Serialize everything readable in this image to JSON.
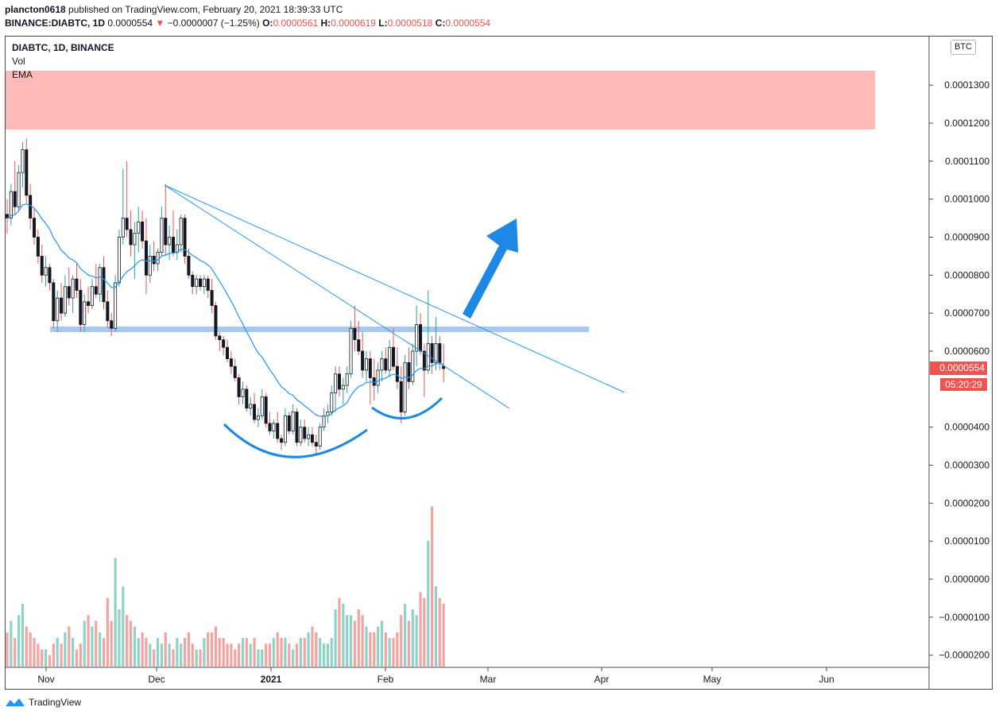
{
  "header": {
    "author": "plancton0618",
    "published_text": "published on TradingView.com, February 20, 2021 18:39:33 UTC",
    "symbol": "BINANCE:DIABTC, 1D",
    "price": "0.0000554",
    "arrow": "▼",
    "change": "−0.0000007 (−1.25%)",
    "o_label": "O:",
    "o_value": "0.0000561",
    "h_label": "H:",
    "h_value": "0.0000619",
    "l_label": "L:",
    "l_value": "0.0000518",
    "c_label": "C:",
    "c_value": "0.0000554"
  },
  "legend": {
    "symbol": "DIABTC, 1D, BINANCE",
    "vol": "Vol",
    "ema": "EMA"
  },
  "price_axis": {
    "currency": "BTC",
    "current_price": "0.0000554",
    "countdown": "05:20:29",
    "ticks": [
      "0.0001300",
      "0.0001200",
      "0.0001100",
      "0.0001000",
      "0.0000900",
      "0.0000800",
      "0.0000700",
      "0.0000600",
      "0.0000400",
      "0.0000300",
      "0.0000200",
      "0.0000100",
      "0.0000000",
      "−0.0000100",
      "−0.0000200"
    ]
  },
  "time_axis": {
    "labels": [
      "Nov",
      "Dec",
      "2021",
      "Feb",
      "Mar",
      "Apr",
      "May",
      "Jun"
    ]
  },
  "footer": {
    "brand": "TradingView"
  },
  "colors": {
    "up": "#26a69a",
    "down": "#ef5350",
    "candle_body": "#131722",
    "ema": "#2196f3",
    "zone": "#ffbab7",
    "support": "#a8c8f0",
    "arrow": "#1e88e5"
  },
  "chart_data": {
    "type": "candlestick",
    "symbol": "DIABTC",
    "timeframe": "1D",
    "exchange": "BINANCE",
    "x_labels": [
      "Nov",
      "Dec",
      "2021",
      "Feb",
      "Mar",
      "Apr",
      "May",
      "Jun"
    ],
    "y_range": [
      -2.2e-05,
      0.000141
    ],
    "ohlc": [
      [
        9.6e-05,
        0.0001,
        9.1e-05,
        9.5e-05
      ],
      [
        9.5e-05,
        0.000104,
        9.3e-05,
        0.000102
      ],
      [
        0.000102,
        0.00011,
        9.6e-05,
        9.8e-05
      ],
      [
        9.8e-05,
        0.000109,
        9.7e-05,
        0.000107
      ],
      [
        0.000107,
        0.000115,
        0.000103,
        0.000113
      ],
      [
        0.000113,
        0.000116,
        9.9e-05,
        0.000101
      ],
      [
        0.000101,
        0.000104,
        9.2e-05,
        9.5e-05
      ],
      [
        9.5e-05,
        9.8e-05,
        8.8e-05,
        9e-05
      ],
      [
        9e-05,
        9.2e-05,
        8.3e-05,
        8.5e-05
      ],
      [
        8.5e-05,
        8.8e-05,
        7.8e-05,
        8e-05
      ],
      [
        8e-05,
        8.5e-05,
        7.7e-05,
        8.2e-05
      ],
      [
        8.2e-05,
        8.3e-05,
        7.6e-05,
        7.8e-05
      ],
      [
        7.8e-05,
        7.9e-05,
        6.6e-05,
        6.8e-05
      ],
      [
        6.8e-05,
        7.6e-05,
        6.5e-05,
        7.4e-05
      ],
      [
        7.4e-05,
        7.8e-05,
        6.8e-05,
        7e-05
      ],
      [
        7e-05,
        8e-05,
        6.9e-05,
        7.7e-05
      ],
      [
        7.7e-05,
        8.2e-05,
        7.2e-05,
        7.4e-05
      ],
      [
        7.4e-05,
        8e-05,
        7e-05,
        7.9e-05
      ],
      [
        7.9e-05,
        8.3e-05,
        7.4e-05,
        7.6e-05
      ],
      [
        7.6e-05,
        7.9e-05,
        6.5e-05,
        6.7e-05
      ],
      [
        6.7e-05,
        7.5e-05,
        6.5e-05,
        7.3e-05
      ],
      [
        7.3e-05,
        7.7e-05,
        7e-05,
        7.2e-05
      ],
      [
        7.2e-05,
        7.9e-05,
        7.1e-05,
        7.7e-05
      ],
      [
        7.7e-05,
        8.3e-05,
        7.4e-05,
        7.5e-05
      ],
      [
        7.5e-05,
        8.3e-05,
        7.3e-05,
        8.2e-05
      ],
      [
        8.2e-05,
        8.5e-05,
        7.1e-05,
        7.3e-05
      ],
      [
        7.3e-05,
        7.6e-05,
        6.6e-05,
        6.8e-05
      ],
      [
        6.8e-05,
        7e-05,
        6.4e-05,
        6.6e-05
      ],
      [
        6.6e-05,
        8e-05,
        6.5e-05,
        7.8e-05
      ],
      [
        7.8e-05,
        9.2e-05,
        7.7e-05,
        9e-05
      ],
      [
        9e-05,
        0.000108,
        8.8e-05,
        9.5e-05
      ],
      [
        9.5e-05,
        0.00011,
        9e-05,
        9.2e-05
      ],
      [
        9.2e-05,
        9.7e-05,
        8.5e-05,
        8.8e-05
      ],
      [
        8.8e-05,
        9.4e-05,
        7.9e-05,
        9.1e-05
      ],
      [
        9.1e-05,
        9.8e-05,
        8.6e-05,
        9.4e-05
      ],
      [
        9.4e-05,
        9.7e-05,
        8.7e-05,
        8.9e-05
      ],
      [
        8.9e-05,
        9.5e-05,
        7.5e-05,
        8e-05
      ],
      [
        8e-05,
        8.8e-05,
        7.8e-05,
        8.5e-05
      ],
      [
        8.5e-05,
        8.9e-05,
        8.1e-05,
        8.3e-05
      ],
      [
        8.3e-05,
        8.7e-05,
        8.1e-05,
        8.6e-05
      ],
      [
        8.6e-05,
        9.8e-05,
        8.5e-05,
        9.5e-05
      ],
      [
        9.5e-05,
        0.000104,
        8.5e-05,
        8.8e-05
      ],
      [
        8.8e-05,
        9.3e-05,
        8.4e-05,
        9e-05
      ],
      [
        9e-05,
        9.7e-05,
        8.5e-05,
        8.6e-05
      ],
      [
        8.6e-05,
        9.2e-05,
        8.4e-05,
        8.8e-05
      ],
      [
        8.8e-05,
        9.6e-05,
        8.6e-05,
        9.5e-05
      ],
      [
        9.5e-05,
        9.6e-05,
        8.3e-05,
        8.5e-05
      ],
      [
        8.5e-05,
        8.7e-05,
        7.9e-05,
        8e-05
      ],
      [
        8e-05,
        8.1e-05,
        7.5e-05,
        7.7e-05
      ],
      [
        7.7e-05,
        8e-05,
        7.5e-05,
        7.9e-05
      ],
      [
        7.9e-05,
        8e-05,
        7.6e-05,
        7.7e-05
      ],
      [
        7.7e-05,
        8e-05,
        7.5e-05,
        7.9e-05
      ],
      [
        7.9e-05,
        8e-05,
        7.4e-05,
        7.6e-05
      ],
      [
        7.6e-05,
        7.9e-05,
        7e-05,
        7.2e-05
      ],
      [
        7.2e-05,
        7.3e-05,
        6.3e-05,
        6.4e-05
      ],
      [
        6.4e-05,
        6.5e-05,
        6e-05,
        6.3e-05
      ],
      [
        6.3e-05,
        6.4e-05,
        5.9e-05,
        6.1e-05
      ],
      [
        6.1e-05,
        6.3e-05,
        5.7e-05,
        5.8e-05
      ],
      [
        5.8e-05,
        6e-05,
        5.4e-05,
        5.6e-05
      ],
      [
        5.6e-05,
        5.8e-05,
        5.2e-05,
        5.3e-05
      ],
      [
        5.3e-05,
        5.4e-05,
        4.6e-05,
        4.8e-05
      ],
      [
        4.8e-05,
        5.2e-05,
        4.6e-05,
        5e-05
      ],
      [
        5e-05,
        5.1e-05,
        4.4e-05,
        4.5e-05
      ],
      [
        4.5e-05,
        4.8e-05,
        4.3e-05,
        4.6e-05
      ],
      [
        4.6e-05,
        4.9e-05,
        4.1e-05,
        4.2e-05
      ],
      [
        4.2e-05,
        4.5e-05,
        4e-05,
        4.3e-05
      ],
      [
        4.3e-05,
        5e-05,
        4.2e-05,
        4.8e-05
      ],
      [
        4.8e-05,
        4.9e-05,
        4e-05,
        4.1e-05
      ],
      [
        4.1e-05,
        4.4e-05,
        3.8e-05,
        3.9e-05
      ],
      [
        3.9e-05,
        4.2e-05,
        3.7e-05,
        4.1e-05
      ],
      [
        4.1e-05,
        4.4e-05,
        3.6e-05,
        3.7e-05
      ],
      [
        3.7e-05,
        3.8e-05,
        3.4e-05,
        3.6e-05
      ],
      [
        3.6e-05,
        4.5e-05,
        3.5e-05,
        4.3e-05
      ],
      [
        4.3e-05,
        4.4e-05,
        3.8e-05,
        3.9e-05
      ],
      [
        3.9e-05,
        4.6e-05,
        3.8e-05,
        4.4e-05
      ],
      [
        4.4e-05,
        4.5e-05,
        3.5e-05,
        3.6e-05
      ],
      [
        3.6e-05,
        4.2e-05,
        3.5e-05,
        4e-05
      ],
      [
        4e-05,
        4.2e-05,
        3.6e-05,
        3.7e-05
      ],
      [
        3.7e-05,
        4e-05,
        3.5e-05,
        3.8e-05
      ],
      [
        3.8e-05,
        4e-05,
        3.5e-05,
        3.6e-05
      ],
      [
        3.6e-05,
        3.8e-05,
        3.3e-05,
        3.5e-05
      ],
      [
        3.5e-05,
        4.1e-05,
        3.4e-05,
        4e-05
      ],
      [
        4e-05,
        4.5e-05,
        3.9e-05,
        4.3e-05
      ],
      [
        4.3e-05,
        4.6e-05,
        4.1e-05,
        4.4e-05
      ],
      [
        4.4e-05,
        5.1e-05,
        4.3e-05,
        4.9e-05
      ],
      [
        4.9e-05,
        5.6e-05,
        4.4e-05,
        5.4e-05
      ],
      [
        5.4e-05,
        5.6e-05,
        4.8e-05,
        5e-05
      ],
      [
        5e-05,
        5.3e-05,
        4.6e-05,
        5.1e-05
      ],
      [
        5.1e-05,
        5.6e-05,
        4.9e-05,
        5.4e-05
      ],
      [
        5.4e-05,
        6.8e-05,
        5.3e-05,
        6.6e-05
      ],
      [
        6.6e-05,
        7.2e-05,
        6e-05,
        6.3e-05
      ],
      [
        6.3e-05,
        6.8e-05,
        5.9e-05,
        6e-05
      ],
      [
        6e-05,
        6.5e-05,
        5.3e-05,
        5.5e-05
      ],
      [
        5.5e-05,
        6e-05,
        5.2e-05,
        5.8e-05
      ],
      [
        5.8e-05,
        6e-05,
        4.6e-05,
        5.3e-05
      ],
      [
        5.3e-05,
        5.8e-05,
        4.7e-05,
        5.1e-05
      ],
      [
        5.1e-05,
        5.7e-05,
        4.9e-05,
        5.5e-05
      ],
      [
        5.5e-05,
        6e-05,
        5.2e-05,
        5.8e-05
      ],
      [
        5.8e-05,
        6.1e-05,
        5.4e-05,
        5.5e-05
      ],
      [
        5.5e-05,
        6.3e-05,
        5.3e-05,
        6.1e-05
      ],
      [
        6.1e-05,
        6.6e-05,
        5.5e-05,
        5.6e-05
      ],
      [
        5.6e-05,
        6.1e-05,
        5e-05,
        5.2e-05
      ],
      [
        5.2e-05,
        5.6e-05,
        4.1e-05,
        4.4e-05
      ],
      [
        4.4e-05,
        5.9e-05,
        4.3e-05,
        5.7e-05
      ],
      [
        5.7e-05,
        6.1e-05,
        5e-05,
        5.2e-05
      ],
      [
        5.2e-05,
        6.2e-05,
        5.1e-05,
        6e-05
      ],
      [
        6e-05,
        7.2e-05,
        5.6e-05,
        6.7e-05
      ],
      [
        6.7e-05,
        7e-05,
        5.9e-05,
        6e-05
      ],
      [
        6e-05,
        6.2e-05,
        4.8e-05,
        5.5e-05
      ],
      [
        5.5e-05,
        7.6e-05,
        5.4e-05,
        6.2e-05
      ],
      [
        6.2e-05,
        6.4e-05,
        5.4e-05,
        5.7e-05
      ],
      [
        5.7e-05,
        6.9e-05,
        5.5e-05,
        6.2e-05
      ],
      [
        6.2e-05,
        6.4e-05,
        5.5e-05,
        5.7e-05
      ],
      [
        5.61e-05,
        6.19e-05,
        5.18e-05,
        5.54e-05
      ]
    ],
    "volume": [
      6,
      8,
      5,
      9,
      11,
      7,
      6,
      5,
      4,
      3,
      3,
      2,
      4,
      5,
      4,
      6,
      7,
      5,
      3,
      4,
      8,
      9,
      7,
      8,
      6,
      5,
      12,
      8,
      19,
      10,
      14,
      9,
      8,
      7,
      5,
      6,
      5,
      4,
      3,
      5,
      4,
      6,
      4,
      3,
      5,
      4,
      5,
      6,
      4,
      3,
      3,
      5,
      6,
      6,
      7,
      5,
      5,
      4,
      4,
      3,
      4,
      5,
      5,
      4,
      5,
      3,
      3,
      4,
      4,
      5,
      6,
      5,
      5,
      4,
      3,
      4,
      5,
      5,
      6,
      7,
      6,
      5,
      4,
      4,
      5,
      10,
      12,
      11,
      9,
      9,
      8,
      10,
      9,
      7,
      6,
      6,
      7,
      8,
      6,
      5,
      5,
      6,
      9,
      11,
      8,
      10,
      9,
      13,
      12,
      22,
      28,
      14,
      12,
      11,
      7
    ]
  }
}
